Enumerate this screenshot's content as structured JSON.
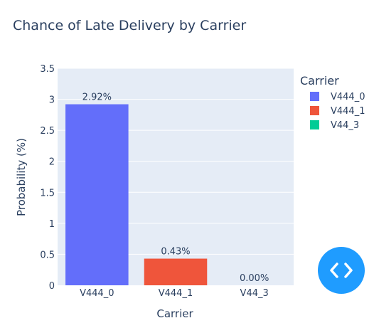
{
  "colors": {
    "plot_bg": "#e5ecf6",
    "grid": "#ffffff",
    "text": "#2a3f5f",
    "embed_button": "#1f9cff"
  },
  "embed_button": {
    "icon": "code-brackets-icon"
  },
  "chart_data": {
    "type": "bar",
    "title": "Chance of Late Delivery by Carrier",
    "xlabel": "Carrier",
    "ylabel": "Probability (%)",
    "categories": [
      "V444_0",
      "V444_1",
      "V44_3"
    ],
    "ylim": [
      0,
      3.5
    ],
    "yticks": [
      "0",
      "0.5",
      "1",
      "1.5",
      "2",
      "2.5",
      "3",
      "3.5"
    ],
    "grid": true,
    "legend": {
      "title": "Carrier",
      "position": "right"
    },
    "series": [
      {
        "name": "V444_0",
        "category": "V444_0",
        "value": 2.92,
        "label": "2.92%",
        "color": "#636efa"
      },
      {
        "name": "V444_1",
        "category": "V444_1",
        "value": 0.43,
        "label": "0.43%",
        "color": "#ef553b"
      },
      {
        "name": "V44_3",
        "category": "V44_3",
        "value": 0.0,
        "label": "0.00%",
        "color": "#00cc96"
      }
    ]
  }
}
